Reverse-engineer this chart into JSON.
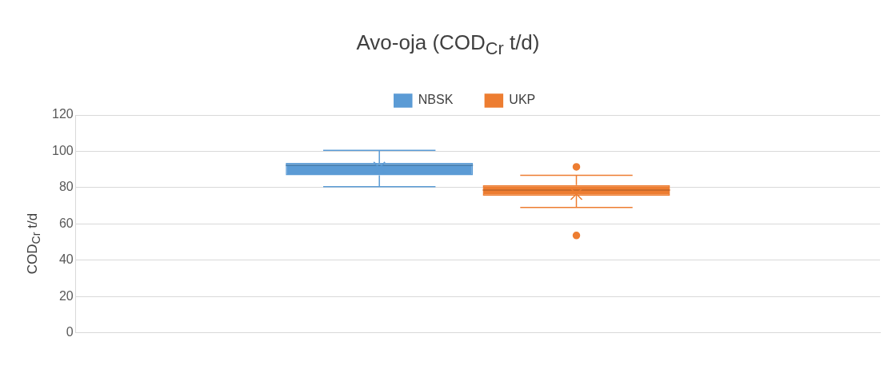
{
  "chart_data": {
    "type": "box",
    "title": "Avo-oja (COD$_{Cr}$ t/d)",
    "ylabel": "COD$_{Cr}$ t/d",
    "categories": [
      null
    ],
    "series": [
      {
        "name": "NBSK",
        "color": "#5b9bd5",
        "boxes": [
          {
            "low": 80.5,
            "q1": 86.8,
            "median": 92.3,
            "q3": 93.6,
            "high": 100.5,
            "mean": 91
          }
        ]
      },
      {
        "name": "UKP",
        "color": "#ed7d31",
        "boxes": [
          {
            "low": 69.1,
            "q1": 75.5,
            "median": 78.6,
            "q3": 81.4,
            "high": 86.8,
            "mean": 76.4,
            "outliers": [
              91.4,
              53.6
            ]
          }
        ]
      }
    ],
    "ylim": [
      0,
      120
    ],
    "yticks": [
      0,
      20,
      40,
      60,
      80,
      100,
      120
    ],
    "grid": "y",
    "legend": "top"
  }
}
